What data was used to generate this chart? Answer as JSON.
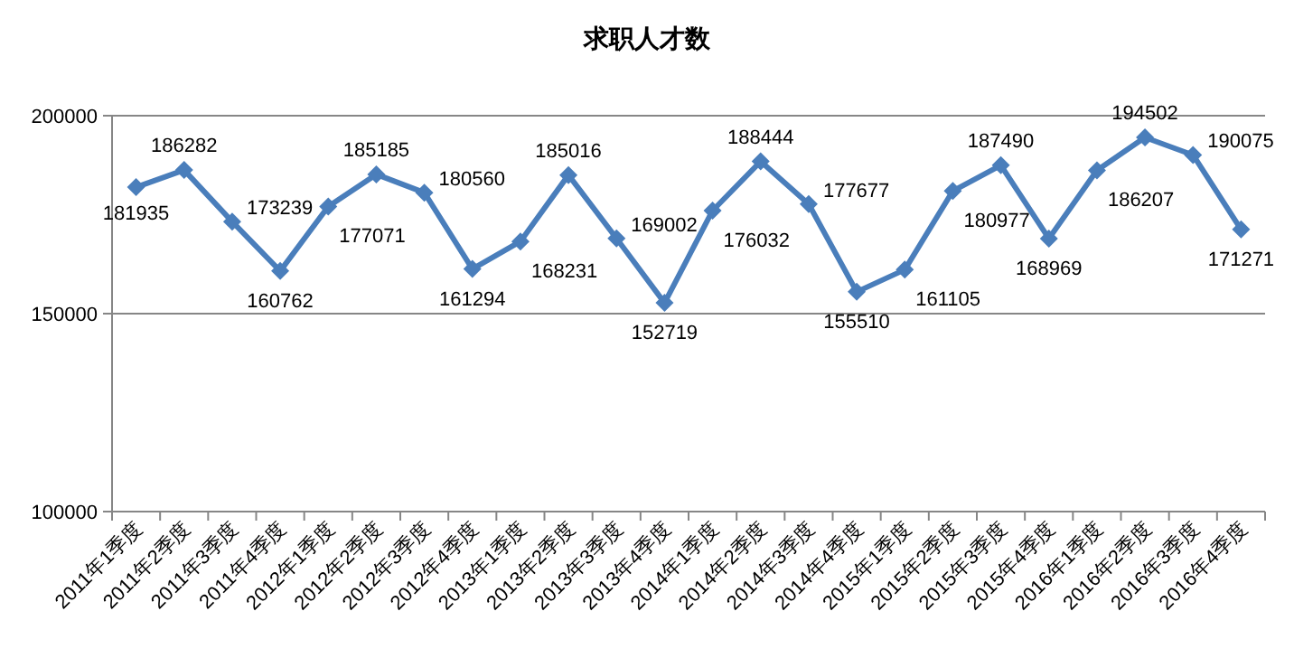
{
  "chart_data": {
    "type": "line",
    "title": "求职人才数",
    "categories": [
      "2011年1季度",
      "2011年2季度",
      "2011年3季度",
      "2011年4季度",
      "2012年1季度",
      "2012年2季度",
      "2012年3季度",
      "2012年4季度",
      "2013年1季度",
      "2013年2季度",
      "2013年3季度",
      "2013年4季度",
      "2014年1季度",
      "2014年2季度",
      "2014年3季度",
      "2014年4季度",
      "2015年1季度",
      "2015年2季度",
      "2015年3季度",
      "2015年4季度",
      "2016年1季度",
      "2016年2季度",
      "2016年3季度",
      "2016年4季度"
    ],
    "series": [
      {
        "color": "#4a7ebb",
        "values": [
          181935,
          186282,
          173239,
          160762,
          177071,
          185185,
          180560,
          161294,
          168231,
          185016,
          169002,
          152719,
          176032,
          188444,
          177677,
          155510,
          161105,
          180977,
          187490,
          168969,
          186207,
          194502,
          190075,
          171271
        ]
      }
    ],
    "ylim": [
      100000,
      200000
    ],
    "yticks": [
      100000,
      150000,
      200000
    ],
    "grid": "y",
    "marker": "diamond",
    "line_style": "solid",
    "data_labels": true
  }
}
